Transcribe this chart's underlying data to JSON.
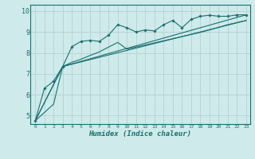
{
  "xlabel": "Humidex (Indice chaleur)",
  "bg_color": "#ceeaea",
  "grid_color": "#b8d4d4",
  "line_color": "#1a7070",
  "spine_color": "#1a7070",
  "xlim": [
    -0.5,
    23.4
  ],
  "ylim": [
    4.6,
    10.3
  ],
  "xticks": [
    0,
    1,
    2,
    3,
    4,
    5,
    6,
    7,
    8,
    9,
    10,
    11,
    12,
    13,
    14,
    15,
    16,
    17,
    18,
    19,
    20,
    21,
    22,
    23
  ],
  "yticks": [
    5,
    6,
    7,
    8,
    9,
    10
  ],
  "line1_x": [
    0,
    1,
    2,
    3,
    4,
    5,
    6,
    7,
    8,
    9,
    10,
    11,
    12,
    13,
    14,
    15,
    16,
    17,
    18,
    19,
    20,
    21,
    22,
    23
  ],
  "line1_y": [
    4.75,
    6.3,
    6.65,
    7.35,
    8.3,
    8.55,
    8.6,
    8.55,
    8.85,
    9.35,
    9.2,
    9.0,
    9.1,
    9.05,
    9.35,
    9.55,
    9.2,
    9.6,
    9.75,
    9.8,
    9.75,
    9.75,
    9.82,
    9.82
  ],
  "line2_x": [
    0,
    1,
    2,
    3,
    4,
    5,
    6,
    7,
    8,
    9,
    10,
    11,
    12,
    13,
    14,
    15,
    16,
    17,
    18,
    19,
    20,
    21,
    22,
    23
  ],
  "line2_y": [
    4.75,
    5.15,
    5.55,
    7.35,
    7.55,
    7.7,
    7.88,
    8.05,
    8.28,
    8.5,
    8.18,
    8.28,
    8.38,
    8.48,
    8.58,
    8.68,
    8.78,
    8.88,
    8.98,
    9.1,
    9.22,
    9.35,
    9.45,
    9.55
  ],
  "line3_x": [
    0,
    3,
    23
  ],
  "line3_y": [
    4.75,
    7.35,
    9.55
  ],
  "line4_x": [
    0,
    3,
    23
  ],
  "line4_y": [
    4.75,
    7.35,
    9.82
  ]
}
